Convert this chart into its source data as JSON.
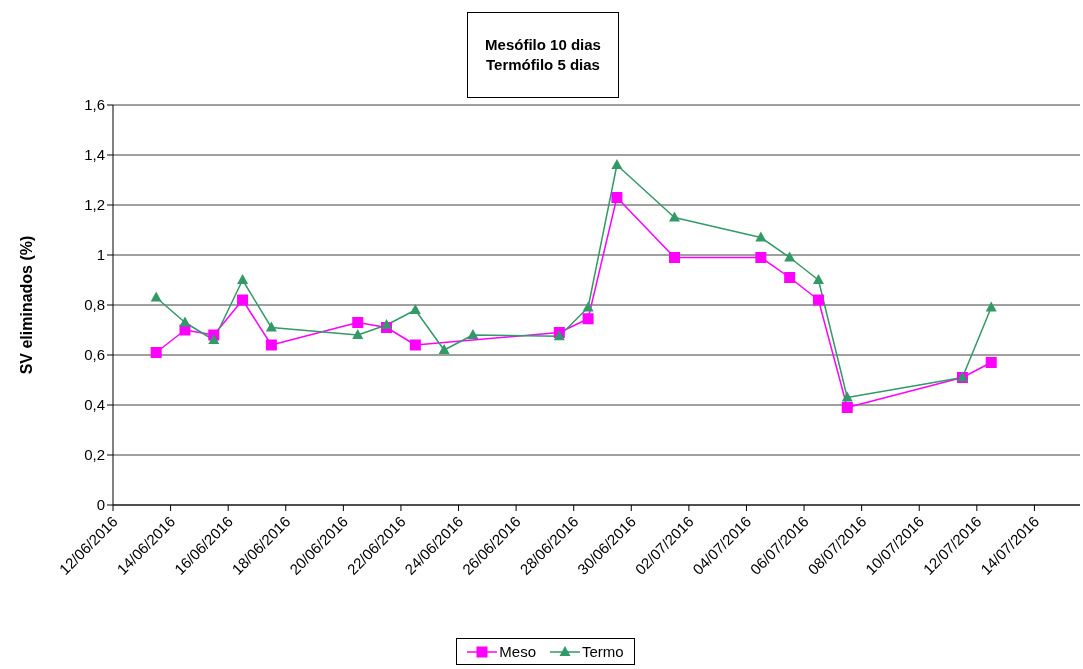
{
  "chart_data": {
    "type": "line",
    "title": "Mesófilo 10 dias",
    "subtitle": "Termófilo 5 dias",
    "ylabel": "SV eliminados (%)",
    "series": [
      {
        "name": "Meso",
        "color": "#ff00ff",
        "marker": "square",
        "x": [
          "2016-06-13T12:00",
          "2016-06-14T12:00",
          "2016-06-15T12:00",
          "2016-06-16T12:00",
          "2016-06-17T12:00",
          "2016-06-20T12:00",
          "2016-06-21T12:00",
          "2016-06-22T12:00",
          "2016-06-27T12:00",
          "2016-06-28T12:00",
          "2016-06-29T12:00",
          "2016-07-01T12:00",
          "2016-07-04T12:00",
          "2016-07-05T12:00",
          "2016-07-06T12:00",
          "2016-07-07T12:00",
          "2016-07-11T12:00",
          "2016-07-12T12:00"
        ],
        "values": [
          0.61,
          0.7,
          0.68,
          0.82,
          0.64,
          0.73,
          0.71,
          0.64,
          0.69,
          0.745,
          1.23,
          0.99,
          0.99,
          0.91,
          0.82,
          0.39,
          0.51,
          0.57
        ]
      },
      {
        "name": "Termo",
        "color": "#339966",
        "marker": "triangle",
        "x": [
          "2016-06-13T12:00",
          "2016-06-14T12:00",
          "2016-06-15T12:00",
          "2016-06-16T12:00",
          "2016-06-17T12:00",
          "2016-06-20T12:00",
          "2016-06-21T12:00",
          "2016-06-22T12:00",
          "2016-06-23T12:00",
          "2016-06-24T12:00",
          "2016-06-27T12:00",
          "2016-06-28T12:00",
          "2016-06-29T12:00",
          "2016-07-01T12:00",
          "2016-07-04T12:00",
          "2016-07-05T12:00",
          "2016-07-06T12:00",
          "2016-07-07T12:00",
          "2016-07-11T12:00",
          "2016-07-12T12:00"
        ],
        "values": [
          0.83,
          0.73,
          0.66,
          0.9,
          0.71,
          0.68,
          0.72,
          0.78,
          0.62,
          0.68,
          0.675,
          0.79,
          1.36,
          1.15,
          1.07,
          0.99,
          0.9,
          0.43,
          0.51,
          0.79
        ]
      }
    ],
    "xlim": [
      "2016-06-12",
      "2016-07-15T14:00"
    ],
    "xticks": [
      {
        "value": "2016-06-12",
        "label": "12/06/2016"
      },
      {
        "value": "2016-06-14",
        "label": "14/06/2016"
      },
      {
        "value": "2016-06-16",
        "label": "16/06/2016"
      },
      {
        "value": "2016-06-18",
        "label": "18/06/2016"
      },
      {
        "value": "2016-06-20",
        "label": "20/06/2016"
      },
      {
        "value": "2016-06-22",
        "label": "22/06/2016"
      },
      {
        "value": "2016-06-24",
        "label": "24/06/2016"
      },
      {
        "value": "2016-06-26",
        "label": "26/06/2016"
      },
      {
        "value": "2016-06-28",
        "label": "28/06/2016"
      },
      {
        "value": "2016-06-30",
        "label": "30/06/2016"
      },
      {
        "value": "2016-07-02",
        "label": "02/07/2016"
      },
      {
        "value": "2016-07-04",
        "label": "04/07/2016"
      },
      {
        "value": "2016-07-06",
        "label": "06/07/2016"
      },
      {
        "value": "2016-07-08",
        "label": "08/07/2016"
      },
      {
        "value": "2016-07-10",
        "label": "10/07/2016"
      },
      {
        "value": "2016-07-12",
        "label": "12/07/2016"
      },
      {
        "value": "2016-07-14",
        "label": "14/07/2016"
      }
    ],
    "ylim": [
      0,
      1.6
    ],
    "yticks": [
      0,
      {
        "value": 0.2,
        "label": "0,2"
      },
      {
        "value": 0.4,
        "label": "0,4"
      },
      {
        "value": 0.6,
        "label": "0,6"
      },
      {
        "value": 0.8,
        "label": "0,8"
      },
      1,
      {
        "value": 1.2,
        "label": "1,2"
      },
      {
        "value": 1.4,
        "label": "1,4"
      },
      {
        "value": 1.6,
        "label": "1,6"
      }
    ],
    "grid": "y",
    "legend": "bottom",
    "line_style": "solid"
  }
}
